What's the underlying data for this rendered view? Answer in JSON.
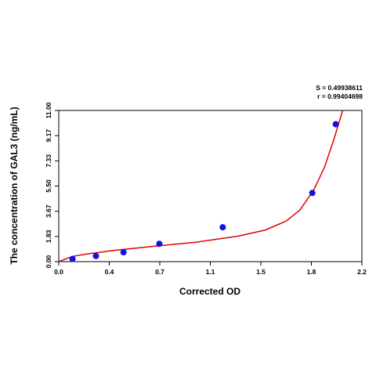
{
  "chart_data": {
    "type": "scatter",
    "xlabel": "Corrected OD",
    "ylabel": "The concentration of GAL3 (ng/mL)",
    "xlim": [
      0,
      2.2
    ],
    "ylim": [
      0,
      11
    ],
    "x_ticks": [
      "0.0",
      "0.4",
      "0.7",
      "1.1",
      "1.5",
      "1.8",
      "2.2"
    ],
    "y_ticks": [
      "0.00",
      "1.83",
      "3.67",
      "5.50",
      "7.33",
      "9.17",
      "11.00"
    ],
    "points": [
      {
        "x": 0.1,
        "y": 0.2
      },
      {
        "x": 0.27,
        "y": 0.41
      },
      {
        "x": 0.47,
        "y": 0.68
      },
      {
        "x": 0.73,
        "y": 1.3
      },
      {
        "x": 1.19,
        "y": 2.5
      },
      {
        "x": 1.84,
        "y": 5.0
      },
      {
        "x": 2.01,
        "y": 10.0
      }
    ],
    "curve": {
      "color": "#e00000",
      "points": [
        {
          "x": 0.0,
          "y": 0.0
        },
        {
          "x": 0.1,
          "y": 0.38
        },
        {
          "x": 0.2,
          "y": 0.55
        },
        {
          "x": 0.4,
          "y": 0.82
        },
        {
          "x": 0.7,
          "y": 1.12
        },
        {
          "x": 1.0,
          "y": 1.42
        },
        {
          "x": 1.3,
          "y": 1.85
        },
        {
          "x": 1.5,
          "y": 2.3
        },
        {
          "x": 1.65,
          "y": 2.95
        },
        {
          "x": 1.75,
          "y": 3.75
        },
        {
          "x": 1.85,
          "y": 5.2
        },
        {
          "x": 1.93,
          "y": 6.9
        },
        {
          "x": 2.0,
          "y": 9.0
        },
        {
          "x": 2.06,
          "y": 11.0
        }
      ]
    },
    "point_color": "#1010e8",
    "stats": {
      "s": "S = 0.49938611",
      "r": "r = 0.99404698"
    }
  }
}
